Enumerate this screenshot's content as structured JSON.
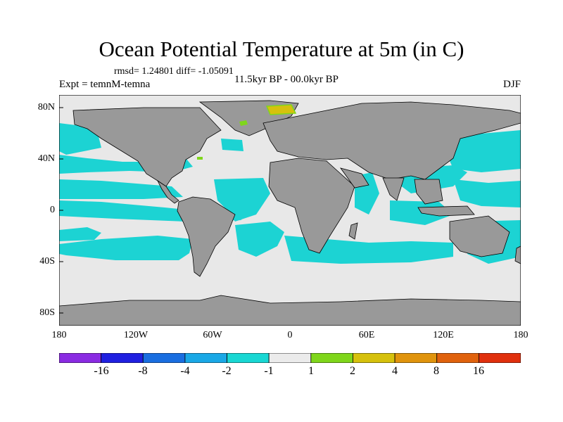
{
  "title": "Ocean Potential Temperature at 5m (in C)",
  "stats": "rmsd= 1.24801 diff= -1.05091",
  "experiment": "Expt = temnM-temna",
  "period": "11.5kyr BP - 00.0kyr BP",
  "season": "DJF",
  "lat_ticks": [
    {
      "label": "80N",
      "value": 80
    },
    {
      "label": "40N",
      "value": 40
    },
    {
      "label": "0",
      "value": 0
    },
    {
      "label": "40S",
      "value": -40
    },
    {
      "label": "80S",
      "value": -80
    }
  ],
  "lon_ticks": [
    {
      "label": "180",
      "value": -180
    },
    {
      "label": "120W",
      "value": -120
    },
    {
      "label": "60W",
      "value": -60
    },
    {
      "label": "0",
      "value": 0
    },
    {
      "label": "60E",
      "value": 60
    },
    {
      "label": "120E",
      "value": 120
    },
    {
      "label": "180",
      "value": 180
    }
  ],
  "colorbar": {
    "labels": [
      "-16",
      "-8",
      "-4",
      "-2",
      "-1",
      "1",
      "2",
      "4",
      "8",
      "16"
    ],
    "colors": [
      "#8a2be2",
      "#2020e0",
      "#1a6ee0",
      "#1aa8e6",
      "#19d7d3",
      "#ebebeb",
      "#7fd61b",
      "#d6c10d",
      "#e0940d",
      "#e0620d",
      "#e0300d"
    ]
  },
  "colors": {
    "land": "#999999",
    "neutral_ocean": "#e8e8e8",
    "cool_ocean": "#1cd3d3",
    "coast": "#000000"
  }
}
